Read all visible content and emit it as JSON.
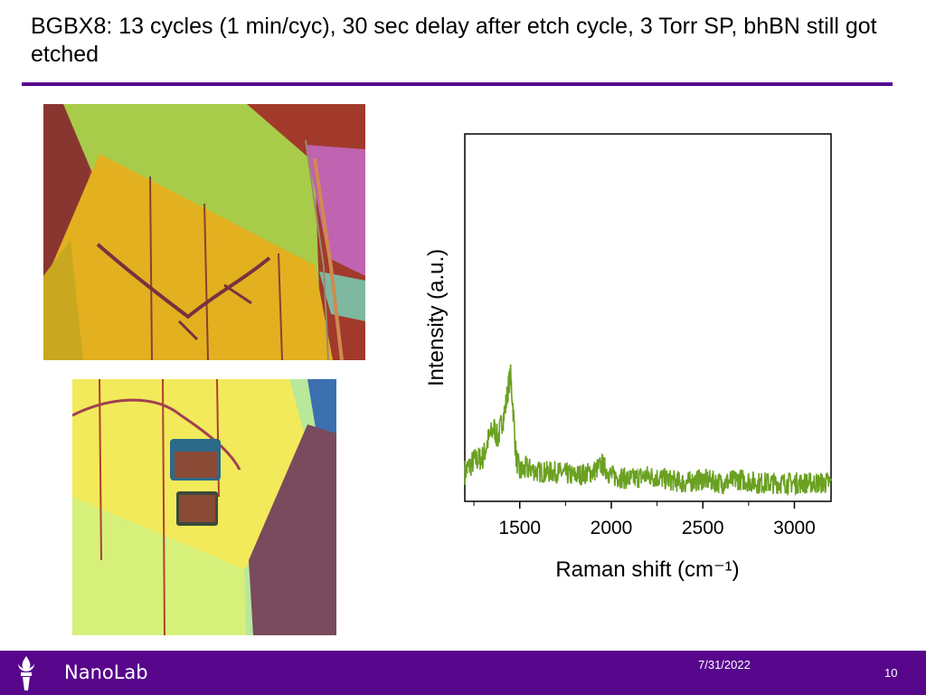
{
  "slide": {
    "title": "BGBX8: 13 cycles (1 min/cyc), 30 sec delay after etch cycle, 3 Torr SP, bhBN still got etched"
  },
  "footer": {
    "brand": "NanoLab",
    "date": "7/31/2022",
    "page_number": "10",
    "logo_icon": "torch-icon"
  },
  "colors": {
    "accent": "#57068c",
    "spectrum": "#6aa121"
  },
  "chart_data": {
    "type": "line",
    "xlabel": "Raman shift (cm⁻¹)",
    "ylabel": "Intensity (a.u.)",
    "xlim": [
      1200,
      3200
    ],
    "ylim": [
      0,
      1
    ],
    "xticks": [
      1500,
      2000,
      2500,
      3000
    ],
    "series": [
      {
        "x": [
          1200,
          1250,
          1300,
          1330,
          1360,
          1380,
          1400,
          1420,
          1440,
          1450,
          1460,
          1480,
          1500,
          1550,
          1600,
          1700,
          1800,
          1900,
          1950,
          2000,
          2100,
          2200,
          2300,
          2400,
          2500,
          2600,
          2700,
          2800,
          2900,
          3000,
          3100,
          3200
        ],
        "y": [
          0.08,
          0.11,
          0.12,
          0.17,
          0.2,
          0.17,
          0.21,
          0.25,
          0.32,
          0.34,
          0.28,
          0.12,
          0.08,
          0.09,
          0.08,
          0.08,
          0.07,
          0.08,
          0.1,
          0.07,
          0.06,
          0.07,
          0.06,
          0.05,
          0.06,
          0.05,
          0.06,
          0.05,
          0.05,
          0.05,
          0.05,
          0.05
        ]
      }
    ]
  }
}
